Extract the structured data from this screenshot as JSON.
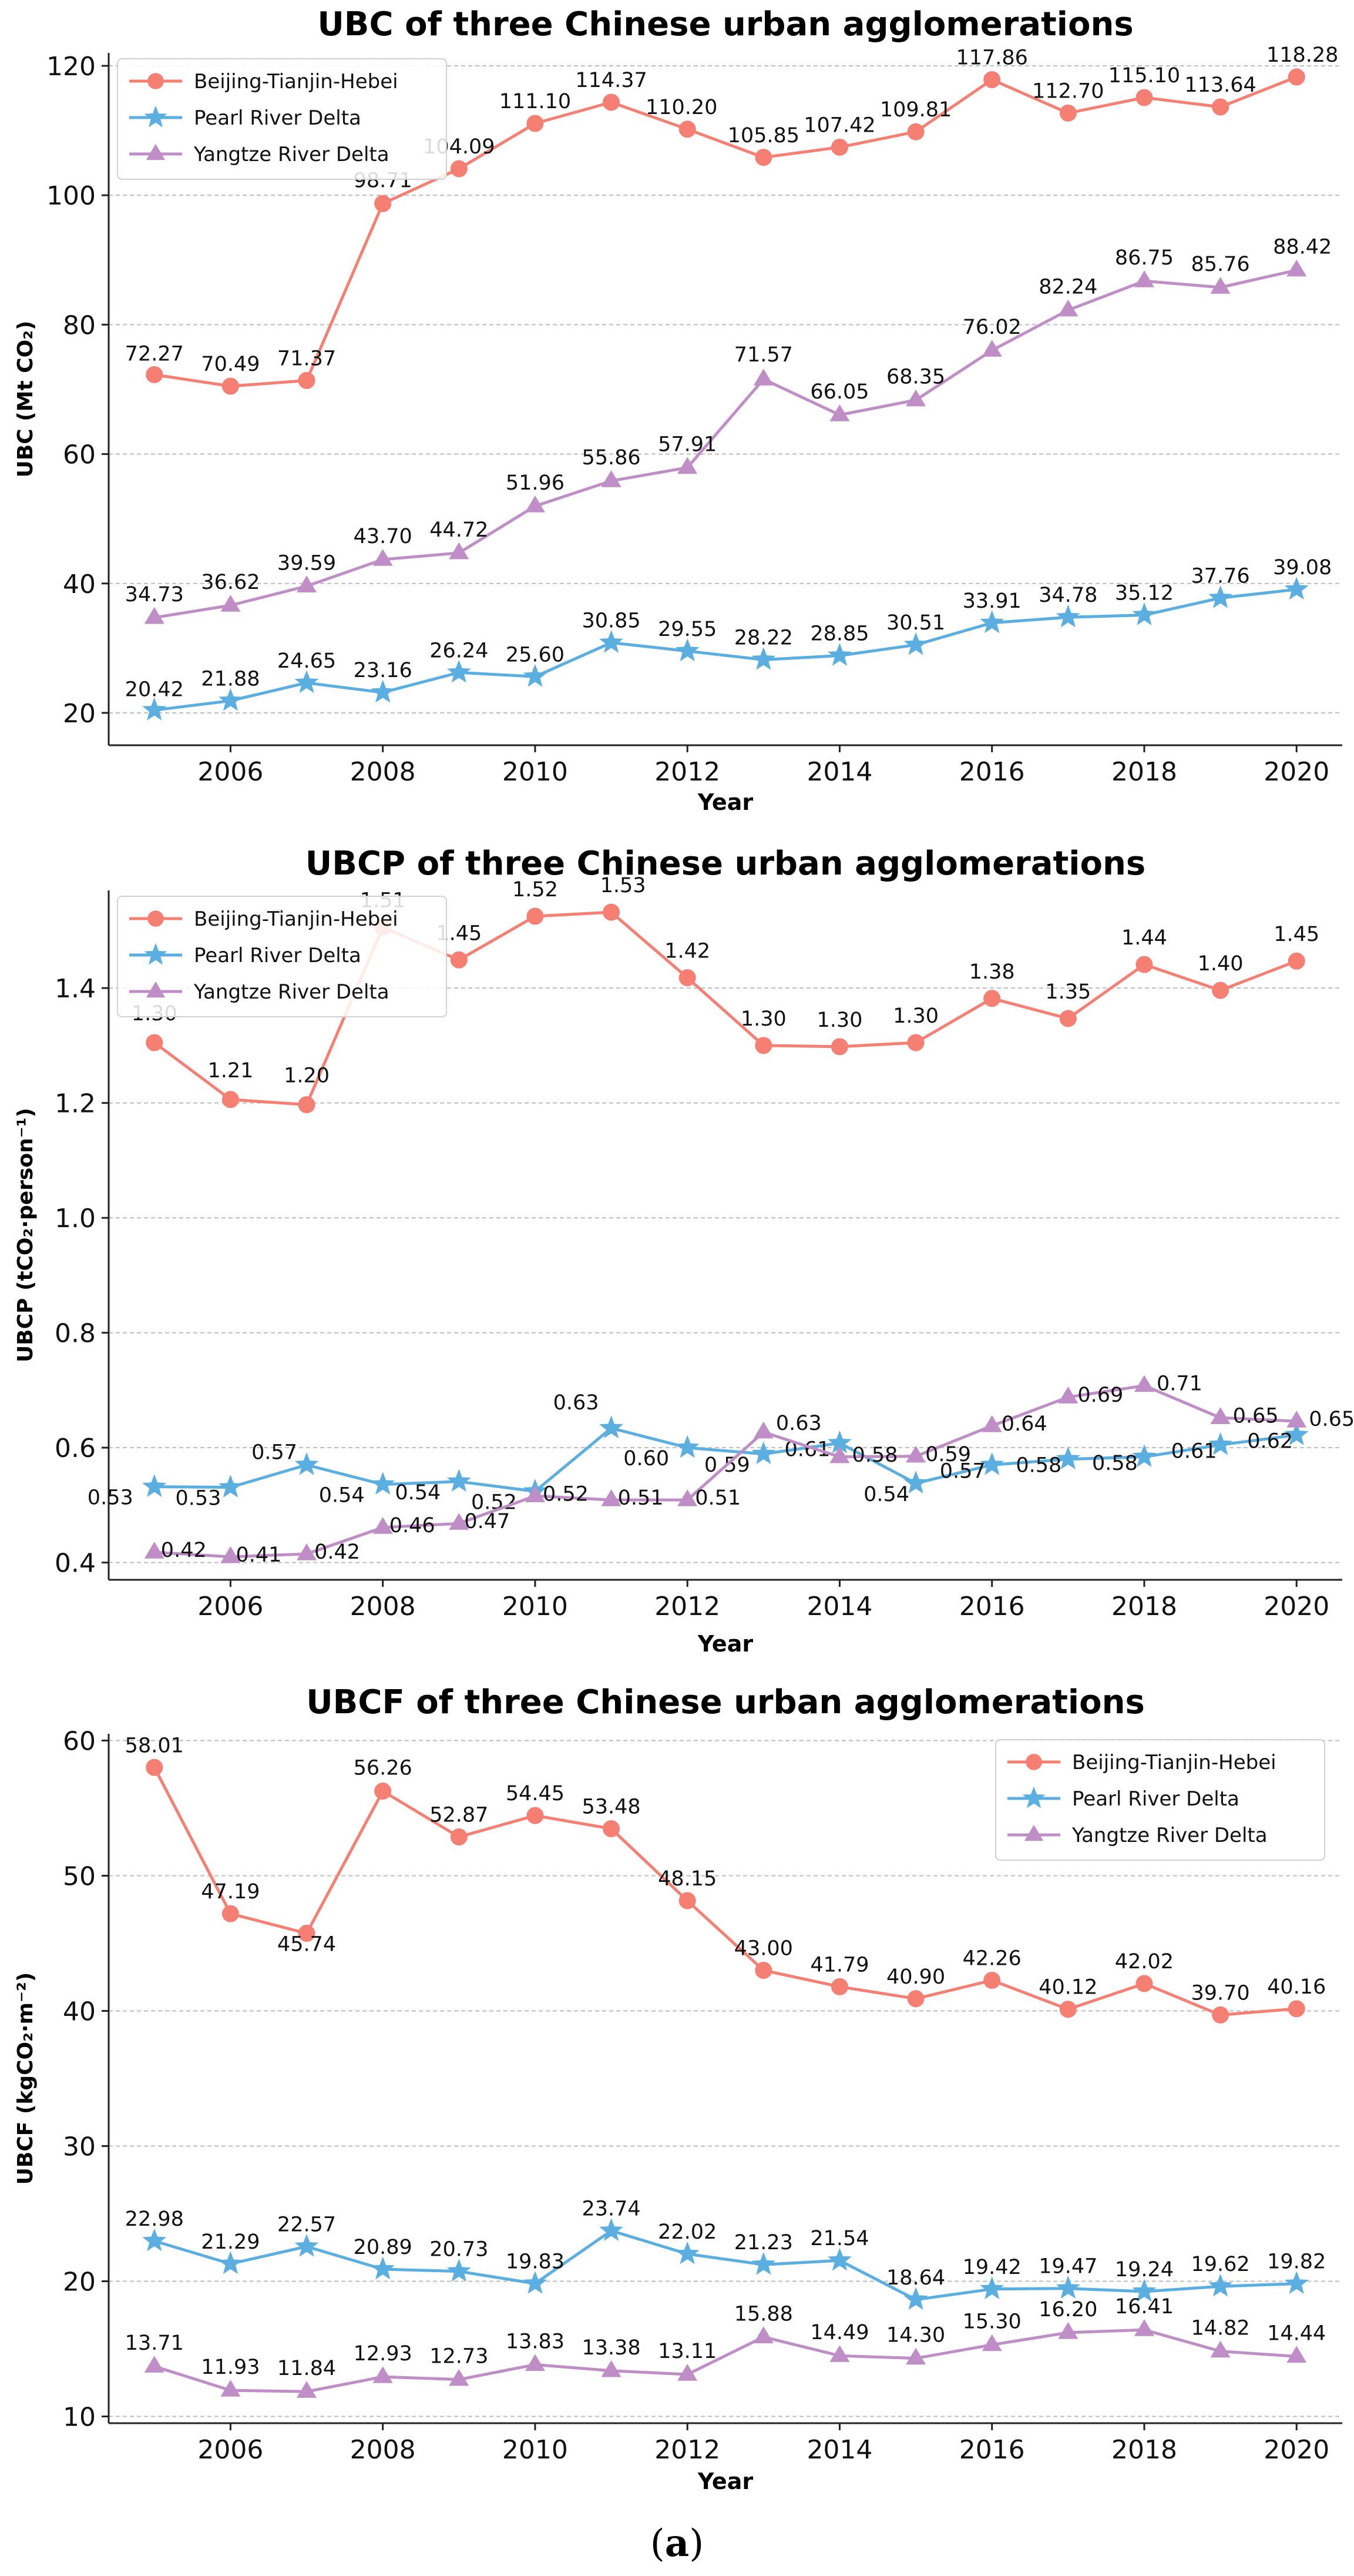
{
  "figure_label": "a",
  "colors": {
    "bth": "#f57f73",
    "prd": "#5aaee0",
    "yrd": "#c08ec6",
    "grid": "#bdbdbd",
    "axis": "#222222"
  },
  "chart_data": [
    {
      "type": "line",
      "title": "UBC of three Chinese urban agglomerations",
      "xlabel": "Year",
      "ylabel": "UBC (Mt CO₂)",
      "xlim": [
        2004.4,
        2020.6
      ],
      "ylim": [
        15,
        122
      ],
      "xticks": [
        2006,
        2008,
        2010,
        2012,
        2014,
        2016,
        2018,
        2020
      ],
      "yticks": [
        20,
        40,
        60,
        80,
        100,
        120
      ],
      "legend_position": "top-left",
      "grid": "horizontal",
      "x": [
        2005,
        2006,
        2007,
        2008,
        2009,
        2010,
        2011,
        2012,
        2013,
        2014,
        2015,
        2016,
        2017,
        2018,
        2019,
        2020
      ],
      "series": [
        {
          "key": "bth",
          "name": "Beijing-Tianjin-Hebei",
          "marker": "circle",
          "values": [
            72.27,
            70.49,
            71.37,
            98.71,
            104.09,
            111.1,
            114.37,
            110.2,
            105.85,
            107.42,
            109.81,
            117.86,
            112.7,
            115.1,
            113.64,
            118.28
          ],
          "labels": [
            "72.27",
            "70.49",
            "71.37",
            "98.71",
            "104.09",
            "111.10",
            "114.37",
            "110.20",
            "105.85",
            "107.42",
            "109.81",
            "117.86",
            "112.70",
            "115.10",
            "113.64",
            "118.28"
          ]
        },
        {
          "key": "prd",
          "name": "Pearl River Delta",
          "marker": "star",
          "values": [
            20.42,
            21.88,
            24.65,
            23.16,
            26.24,
            25.6,
            30.85,
            29.55,
            28.22,
            28.85,
            30.51,
            33.91,
            34.78,
            35.12,
            37.76,
            39.08
          ],
          "labels": [
            "20.42",
            "21.88",
            "24.65",
            "23.16",
            "26.24",
            "25.60",
            "30.85",
            "29.55",
            "28.22",
            "28.85",
            "30.51",
            "33.91",
            "34.78",
            "35.12",
            "37.76",
            "39.08"
          ]
        },
        {
          "key": "yrd",
          "name": "Yangtze River Delta",
          "marker": "triangle",
          "values": [
            34.73,
            36.62,
            39.59,
            43.7,
            44.72,
            51.96,
            55.86,
            57.91,
            71.57,
            66.05,
            68.35,
            76.02,
            82.24,
            86.75,
            85.76,
            88.42
          ],
          "labels": [
            "34.73",
            "36.62",
            "39.59",
            "43.70",
            "44.72",
            "51.96",
            "55.86",
            "57.91",
            "71.57",
            "66.05",
            "68.35",
            "76.02",
            "82.24",
            "86.75",
            "85.76",
            "88.42"
          ]
        }
      ]
    },
    {
      "type": "line",
      "title": "UBCP of three Chinese urban agglomerations",
      "xlabel": "Year",
      "ylabel": "UBCP (tCO₂·person⁻¹)",
      "xlim": [
        2004.4,
        2020.6
      ],
      "ylim": [
        0.37,
        1.57
      ],
      "xticks": [
        2006,
        2008,
        2010,
        2012,
        2014,
        2016,
        2018,
        2020
      ],
      "yticks": [
        0.4,
        0.6,
        0.8,
        1.0,
        1.2,
        1.4
      ],
      "ytick_labels": [
        "0.4",
        "0.6",
        "0.8",
        "1.0",
        "1.2",
        "1.4"
      ],
      "legend_position": "top-left",
      "grid": "horizontal",
      "x": [
        2005,
        2006,
        2007,
        2008,
        2009,
        2010,
        2011,
        2012,
        2013,
        2014,
        2015,
        2016,
        2017,
        2018,
        2019,
        2020
      ],
      "series": [
        {
          "key": "bth",
          "name": "Beijing-Tianjin-Hebei",
          "marker": "circle",
          "values": [
            1.305,
            1.206,
            1.197,
            1.506,
            1.449,
            1.525,
            1.532,
            1.418,
            1.3,
            1.298,
            1.305,
            1.382,
            1.347,
            1.441,
            1.396,
            1.447
          ],
          "labels": [
            "1.30",
            "1.21",
            "1.20",
            "1.51",
            "1.45",
            "1.52",
            "1.53",
            "1.42",
            "1.30",
            "1.30",
            "1.30",
            "1.38",
            "1.35",
            "1.44",
            "1.40",
            "1.45"
          ]
        },
        {
          "key": "prd",
          "name": "Pearl River Delta",
          "marker": "star",
          "values": [
            0.532,
            0.531,
            0.57,
            0.536,
            0.541,
            0.524,
            0.634,
            0.6,
            0.589,
            0.608,
            0.538,
            0.57,
            0.58,
            0.584,
            0.605,
            0.622
          ],
          "labels": [
            "0.53",
            "0.53",
            "0.57",
            "0.54",
            "0.54",
            "0.52",
            "0.63",
            "0.60",
            "0.59",
            "0.61",
            "0.54",
            "0.57",
            "0.58",
            "0.58",
            "0.61",
            "0.62"
          ]
        },
        {
          "key": "yrd",
          "name": "Yangtze River Delta",
          "marker": "triangle",
          "values": [
            0.418,
            0.41,
            0.415,
            0.461,
            0.468,
            0.516,
            0.509,
            0.509,
            0.627,
            0.584,
            0.585,
            0.638,
            0.688,
            0.708,
            0.652,
            0.646
          ],
          "labels": [
            "0.42",
            "0.41",
            "0.42",
            "0.46",
            "0.47",
            "0.52",
            "0.51",
            "0.51",
            "0.63",
            "0.58",
            "0.59",
            "0.64",
            "0.69",
            "0.71",
            "0.65",
            "0.65"
          ]
        }
      ]
    },
    {
      "type": "line",
      "title": "UBCF of three Chinese urban agglomerations",
      "xlabel": "Year",
      "ylabel": "UBCF (kgCO₂·m⁻²)",
      "xlim": [
        2004.4,
        2020.6
      ],
      "ylim": [
        9.5,
        60.5
      ],
      "xticks": [
        2006,
        2008,
        2010,
        2012,
        2014,
        2016,
        2018,
        2020
      ],
      "yticks": [
        10,
        20,
        30,
        40,
        50,
        60
      ],
      "legend_position": "top-right",
      "grid": "horizontal",
      "x": [
        2005,
        2006,
        2007,
        2008,
        2009,
        2010,
        2011,
        2012,
        2013,
        2014,
        2015,
        2016,
        2017,
        2018,
        2019,
        2020
      ],
      "series": [
        {
          "key": "bth",
          "name": "Beijing-Tianjin-Hebei",
          "marker": "circle",
          "values": [
            58.01,
            47.19,
            45.74,
            56.26,
            52.87,
            54.45,
            53.48,
            48.15,
            43.0,
            41.79,
            40.9,
            42.26,
            40.12,
            42.02,
            39.7,
            40.16
          ],
          "labels": [
            "58.01",
            "47.19",
            "45.74",
            "56.26",
            "52.87",
            "54.45",
            "53.48",
            "48.15",
            "43.00",
            "41.79",
            "40.90",
            "42.26",
            "40.12",
            "42.02",
            "39.70",
            "40.16"
          ]
        },
        {
          "key": "prd",
          "name": "Pearl River Delta",
          "marker": "star",
          "values": [
            22.98,
            21.29,
            22.57,
            20.89,
            20.73,
            19.83,
            23.74,
            22.02,
            21.23,
            21.54,
            18.64,
            19.42,
            19.47,
            19.24,
            19.62,
            19.82
          ],
          "labels": [
            "22.98",
            "21.29",
            "22.57",
            "20.89",
            "20.73",
            "19.83",
            "23.74",
            "22.02",
            "21.23",
            "21.54",
            "18.64",
            "19.42",
            "19.47",
            "19.24",
            "19.62",
            "19.82"
          ]
        },
        {
          "key": "yrd",
          "name": "Yangtze River Delta",
          "marker": "triangle",
          "values": [
            13.71,
            11.93,
            11.84,
            12.93,
            12.73,
            13.83,
            13.38,
            13.11,
            15.88,
            14.49,
            14.3,
            15.3,
            16.2,
            16.41,
            14.82,
            14.44
          ],
          "labels": [
            "13.71",
            "11.93",
            "11.84",
            "12.93",
            "12.73",
            "13.83",
            "13.38",
            "13.11",
            "15.88",
            "14.49",
            "14.30",
            "15.30",
            "16.20",
            "16.41",
            "14.82",
            "14.44"
          ]
        }
      ]
    }
  ]
}
